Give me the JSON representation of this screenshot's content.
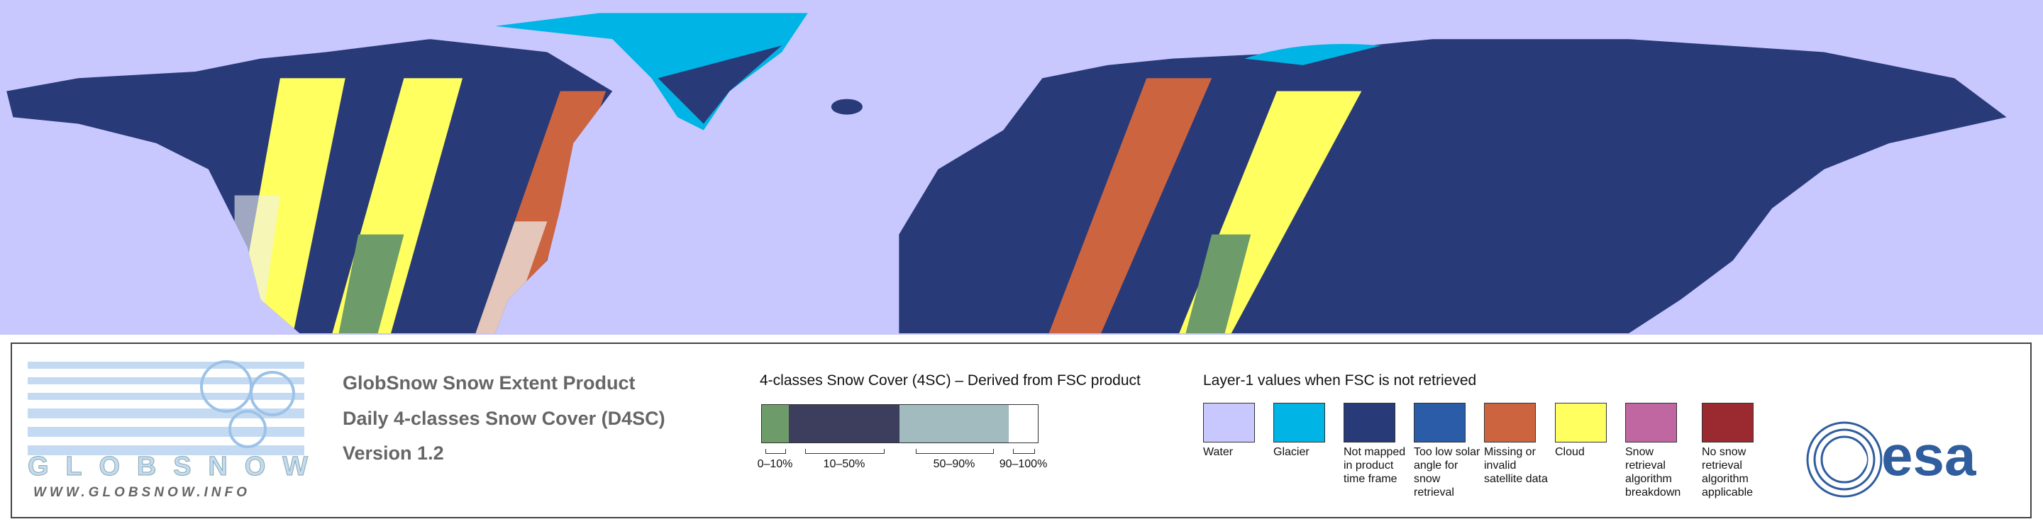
{
  "logo": {
    "name": "GLOBSNOW",
    "url": "WWW.GLOBSNOW.INFO"
  },
  "product": {
    "lines": [
      "GlobSnow Snow Extent Product",
      "Daily 4-classes Snow Cover (D4SC)",
      "Version 1.2"
    ]
  },
  "snow_cover": {
    "title": "4-classes Snow Cover (4SC) – Derived from FSC product",
    "classes": [
      {
        "label": "0–10%",
        "color": "#6e9b6a"
      },
      {
        "label": "10–50%",
        "color": "#3d3d5e"
      },
      {
        "label": "50–90%",
        "color": "#a2bbbf"
      },
      {
        "label": "90–100%",
        "color": "#ffffff"
      }
    ]
  },
  "layer1": {
    "title": "Layer-1 values when FSC is not retrieved",
    "items": [
      {
        "label": "Water",
        "color": "#c8c8ff"
      },
      {
        "label": "Glacier",
        "color": "#00b4e6"
      },
      {
        "label": "Not mapped in product time frame",
        "color": "#283a78"
      },
      {
        "label": "Too low solar angle for snow retrieval",
        "color": "#2a5ca8"
      },
      {
        "label": "Missing or invalid satellite data",
        "color": "#cd6440"
      },
      {
        "label": "Cloud",
        "color": "#ffff60"
      },
      {
        "label": "Snow retrieval algorithm breakdown",
        "color": "#c066a0"
      },
      {
        "label": "No snow retrieval algorithm applicable",
        "color": "#9a2a30"
      }
    ]
  },
  "agency": "esa"
}
